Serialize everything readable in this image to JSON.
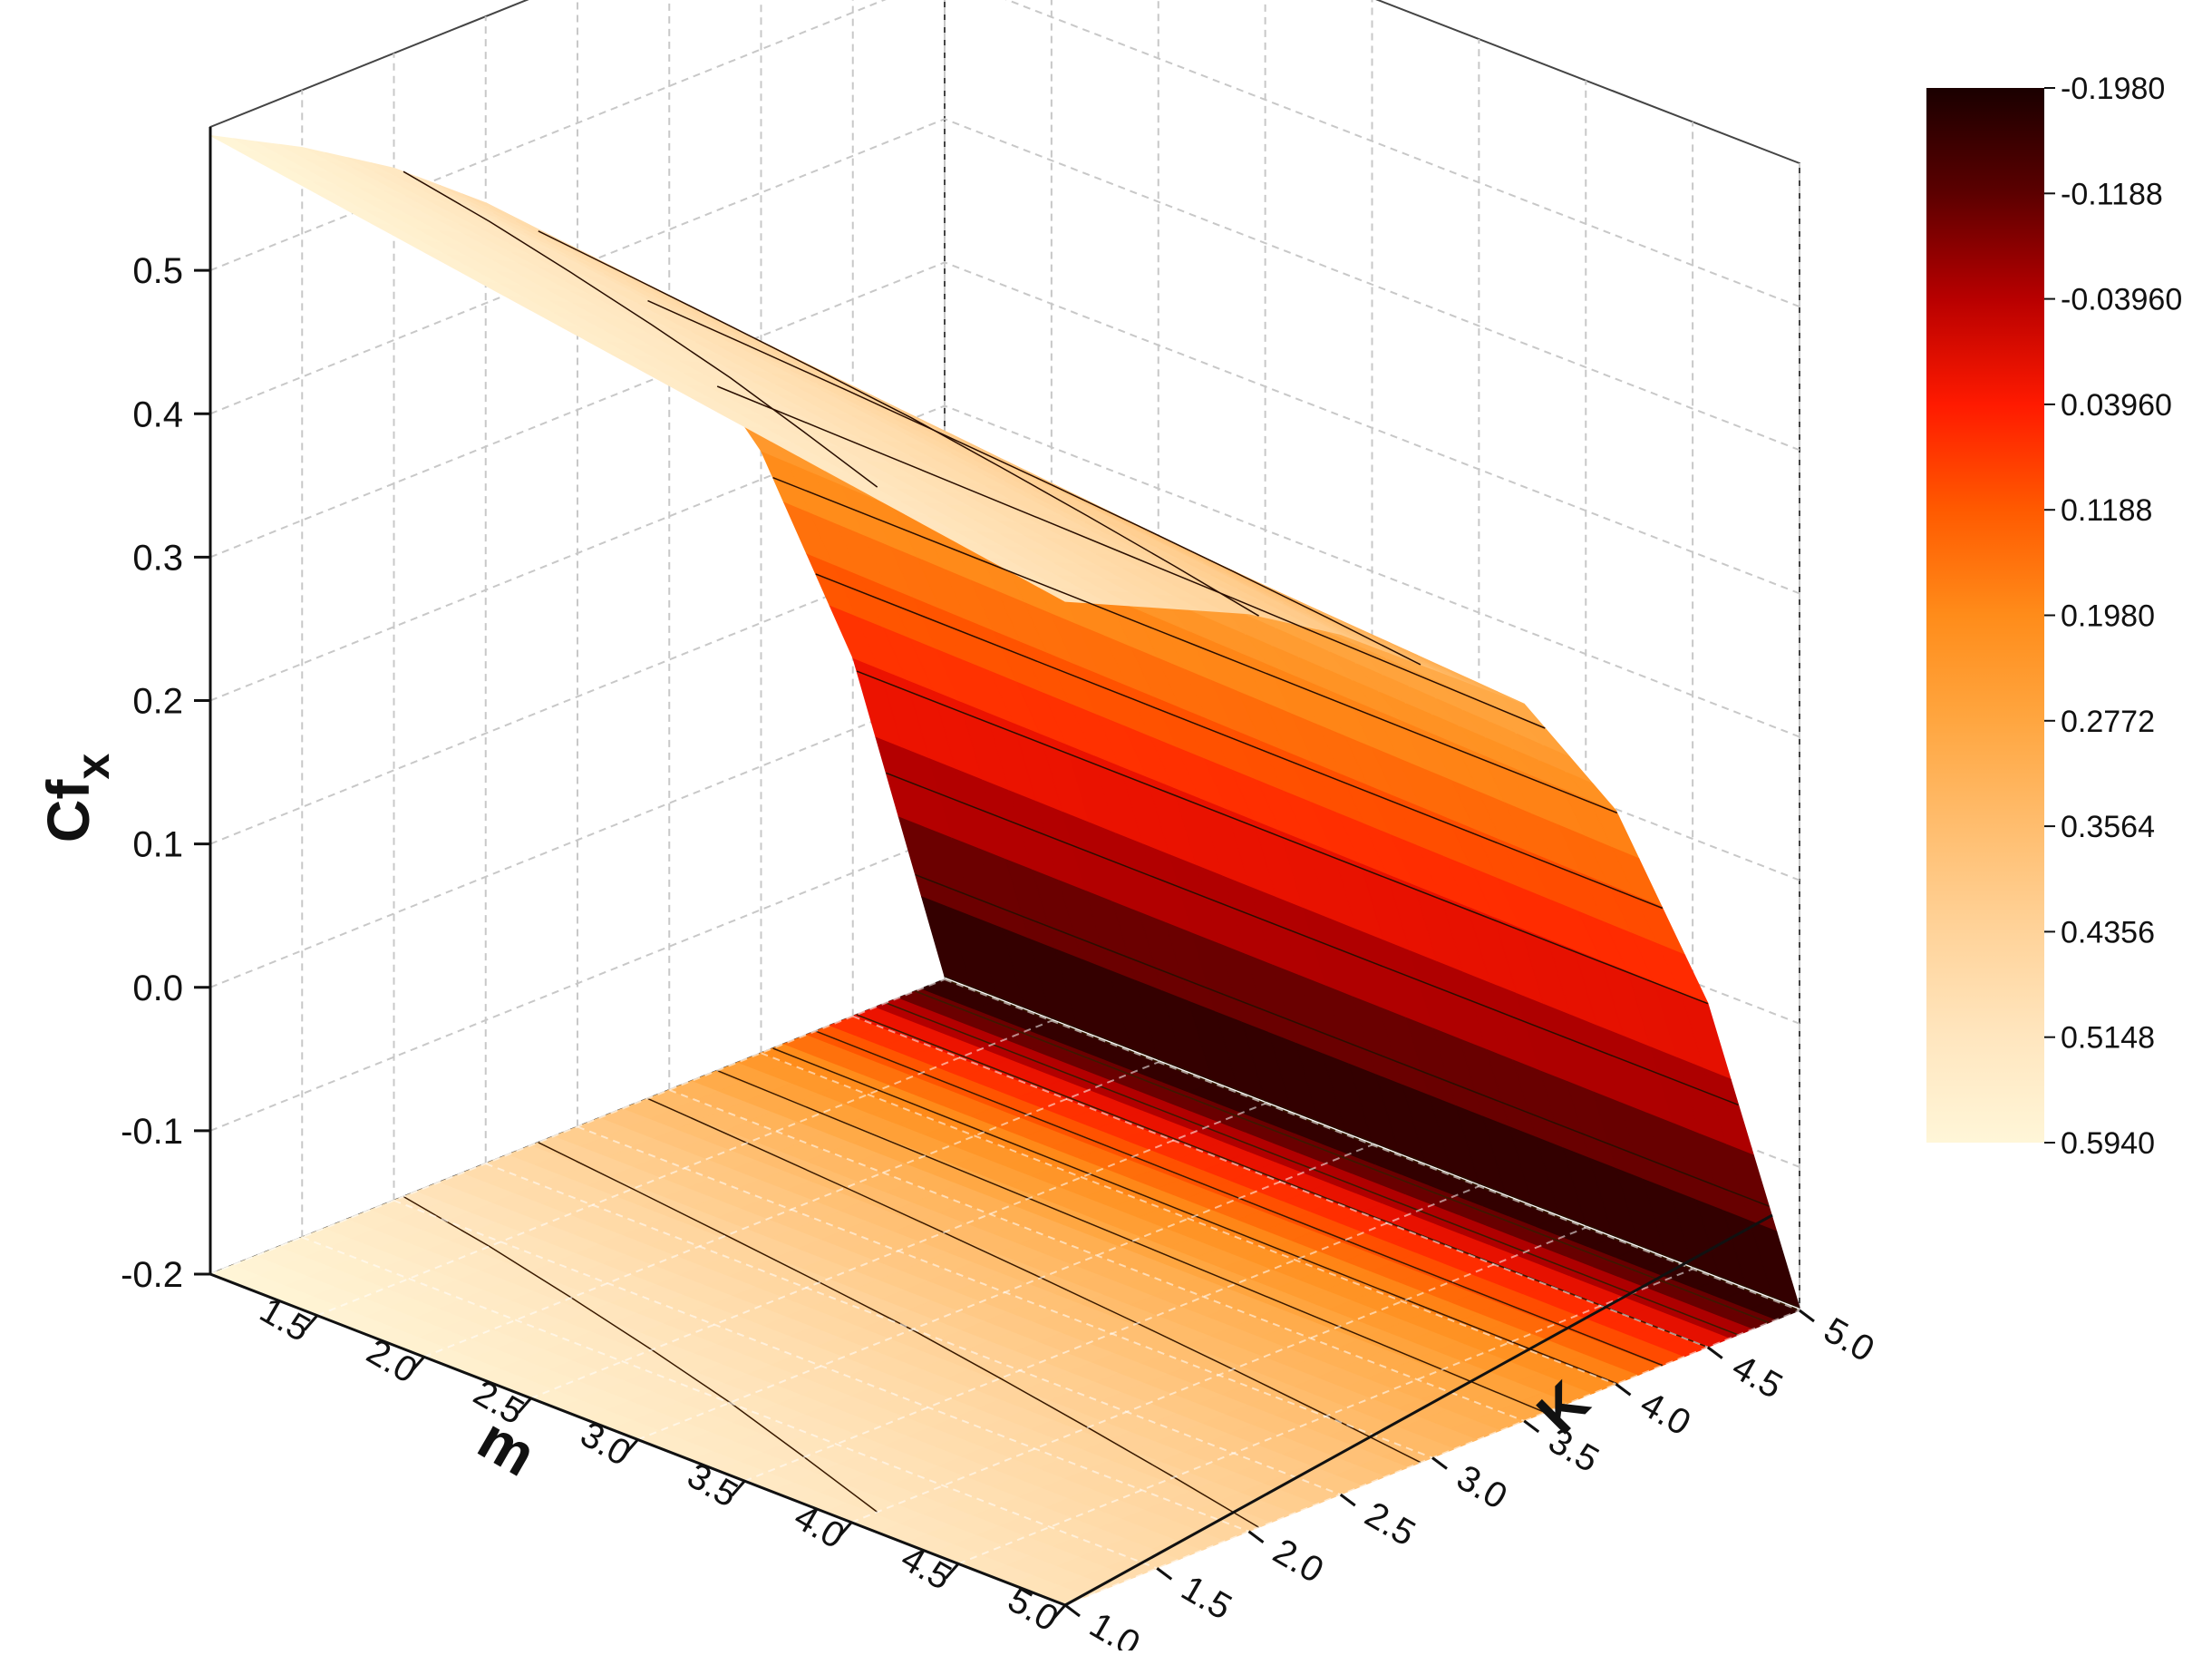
{
  "chart_data": {
    "type": "surface3d",
    "z_axis": {
      "label_main": "Cf",
      "label_sub": "x",
      "ticks": [
        "0.5",
        "0.4",
        "0.3",
        "0.2",
        "0.1",
        "0.0",
        "-0.1",
        "-0.2"
      ],
      "range": [
        -0.2,
        0.6
      ]
    },
    "m_axis": {
      "label": "m",
      "ticks": [
        "1.5",
        "2.0",
        "2.5",
        "3.0",
        "3.5",
        "4.0",
        "4.5",
        "5.0"
      ],
      "range": [
        1.0,
        5.0
      ]
    },
    "k_axis": {
      "label": "K",
      "ticks": [
        "1.0",
        "1.5",
        "2.0",
        "2.5",
        "3.0",
        "3.5",
        "4.0",
        "4.5",
        "5.0"
      ],
      "range": [
        1.0,
        5.0
      ]
    },
    "colorbar": {
      "labels": [
        "-0.1980",
        "-0.1188",
        "-0.03960",
        "0.03960",
        "0.1188",
        "0.1980",
        "0.2772",
        "0.3564",
        "0.4356",
        "0.5148",
        "0.5940"
      ],
      "range": [
        -0.198,
        0.594
      ],
      "colors": [
        "#1a0000",
        "#5c0000",
        "#b80000",
        "#ff1a00",
        "#ff5a00",
        "#ff8c1a",
        "#ffa640",
        "#ffbd6e",
        "#ffd39a",
        "#ffe6bf",
        "#fff6d8"
      ]
    },
    "surface": {
      "m_values": [
        1.0,
        1.5,
        2.0,
        2.5,
        3.0,
        3.5,
        4.0,
        4.5,
        5.0
      ],
      "k_values": [
        1.0,
        1.5,
        2.0,
        2.5,
        3.0,
        3.5,
        4.0,
        4.5,
        5.0
      ],
      "cfx_at_m1_along_k": [
        0.594,
        0.56,
        0.52,
        0.47,
        0.41,
        0.34,
        0.22,
        0.05,
        -0.198
      ],
      "cfx_at_m5_along_k": [
        0.5,
        0.47,
        0.44,
        0.4,
        0.35,
        0.3,
        0.2,
        0.04,
        -0.198
      ]
    },
    "grid": true,
    "legend_placement": "right"
  }
}
